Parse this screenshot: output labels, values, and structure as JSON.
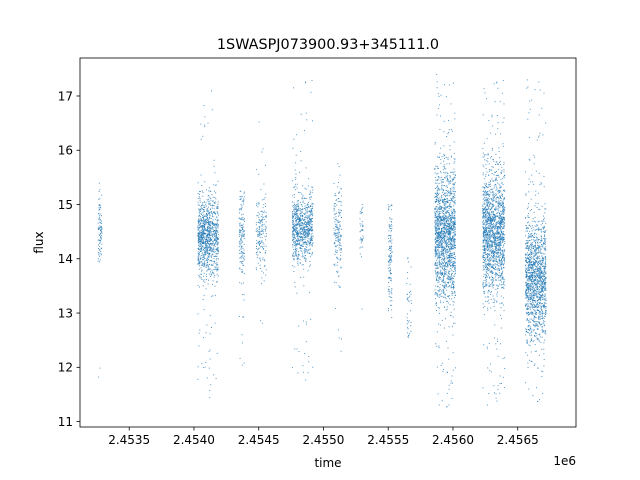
{
  "chart_data": {
    "type": "scatter",
    "title": "1SWASPJ073900.93+345111.0",
    "xlabel": "time",
    "ylabel": "flux",
    "x_offset_label": "1e6",
    "xlim": [
      2453120,
      2456950
    ],
    "ylim": [
      10.9,
      17.7
    ],
    "x_ticks": [
      {
        "value": 2453500,
        "label": "2.4535"
      },
      {
        "value": 2454000,
        "label": "2.4540"
      },
      {
        "value": 2454500,
        "label": "2.4545"
      },
      {
        "value": 2455000,
        "label": "2.4550"
      },
      {
        "value": 2455500,
        "label": "2.4555"
      },
      {
        "value": 2456000,
        "label": "2.4560"
      },
      {
        "value": 2456500,
        "label": "2.4565"
      }
    ],
    "y_ticks": [
      {
        "value": 11,
        "label": "11"
      },
      {
        "value": 12,
        "label": "12"
      },
      {
        "value": 13,
        "label": "13"
      },
      {
        "value": 14,
        "label": "14"
      },
      {
        "value": 15,
        "label": "15"
      },
      {
        "value": 16,
        "label": "16"
      },
      {
        "value": 17,
        "label": "17"
      }
    ],
    "grid": false,
    "marker_color": "#1f77b4",
    "clusters": [
      {
        "x_start": 2453260,
        "x_end": 2453290,
        "y_center": 14.5,
        "spread": 0.3,
        "y_min": 11.6,
        "y_max": 15.7,
        "count": 90
      },
      {
        "x_start": 2454030,
        "x_end": 2454130,
        "y_center": 14.4,
        "spread": 0.35,
        "y_min": 11.3,
        "y_max": 17.0,
        "count": 700
      },
      {
        "x_start": 2454130,
        "x_end": 2454190,
        "y_center": 14.4,
        "spread": 0.4,
        "y_min": 11.7,
        "y_max": 17.1,
        "count": 300
      },
      {
        "x_start": 2454350,
        "x_end": 2454390,
        "y_center": 14.4,
        "spread": 0.4,
        "y_min": 12.0,
        "y_max": 15.3,
        "count": 150
      },
      {
        "x_start": 2454480,
        "x_end": 2454560,
        "y_center": 14.4,
        "spread": 0.35,
        "y_min": 12.3,
        "y_max": 16.8,
        "count": 170
      },
      {
        "x_start": 2454760,
        "x_end": 2454920,
        "y_center": 14.6,
        "spread": 0.3,
        "y_min": 11.6,
        "y_max": 17.3,
        "count": 800
      },
      {
        "x_start": 2455080,
        "x_end": 2455140,
        "y_center": 14.5,
        "spread": 0.35,
        "y_min": 11.9,
        "y_max": 15.8,
        "count": 170
      },
      {
        "x_start": 2455280,
        "x_end": 2455310,
        "y_center": 14.5,
        "spread": 0.3,
        "y_min": 13.0,
        "y_max": 15.0,
        "count": 40
      },
      {
        "x_start": 2455500,
        "x_end": 2455530,
        "y_center": 14.0,
        "spread": 0.5,
        "y_min": 11.3,
        "y_max": 15.0,
        "count": 120
      },
      {
        "x_start": 2455640,
        "x_end": 2455680,
        "y_center": 13.0,
        "spread": 0.5,
        "y_min": 12.5,
        "y_max": 14.2,
        "count": 40
      },
      {
        "x_start": 2455860,
        "x_end": 2456020,
        "y_center": 14.4,
        "spread": 0.6,
        "y_min": 11.2,
        "y_max": 17.4,
        "count": 1600
      },
      {
        "x_start": 2456230,
        "x_end": 2456400,
        "y_center": 14.5,
        "spread": 0.55,
        "y_min": 11.2,
        "y_max": 17.3,
        "count": 1600
      },
      {
        "x_start": 2456560,
        "x_end": 2456720,
        "y_center": 13.6,
        "spread": 0.55,
        "y_min": 11.3,
        "y_max": 17.3,
        "count": 1400
      }
    ]
  }
}
